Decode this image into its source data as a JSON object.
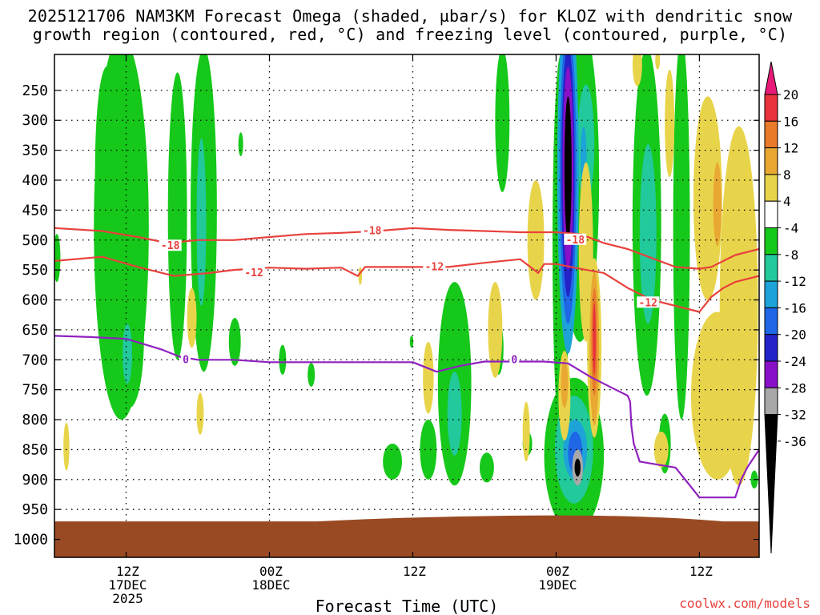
{
  "title": {
    "line1": "2025121706 NAM3KM Forecast Omega (shaded, µbar/s) for KLOZ with dendritic snow",
    "line2": "growth region (contoured, red, °C) and freezing level (contoured, purple, °C)"
  },
  "credit": "coolwx.com/models",
  "colors": {
    "green": "#16c81a",
    "teal": "#22c99b",
    "cyan": "#1da3d8",
    "blue": "#1f67e6",
    "navy": "#2323c8",
    "purple": "#8a10c8",
    "gray": "#a8a8a8",
    "black": "#000000",
    "yellow": "#e8d44a",
    "gold": "#e8a832",
    "orange": "#e87a2a",
    "red": "#e8313c",
    "magenta": "#e81a78",
    "dgz_line": "#e8413c",
    "freezing_line": "#9020c0",
    "ground": "#9a4a23"
  },
  "chart_data": {
    "type": "heatmap",
    "title": "2025121706 NAM3KM Forecast Omega (shaded, µbar/s) for KLOZ with dendritic snow growth region (contoured, red, °C) and freezing level (contoured, purple, °C)",
    "xlabel": "Forecast Time (UTC)",
    "ylabel": "",
    "x_ticks": [
      {
        "hour": 6,
        "lines": [
          "12Z",
          "17DEC",
          "2025"
        ]
      },
      {
        "hour": 18,
        "lines": [
          "00Z",
          "18DEC"
        ]
      },
      {
        "hour": 30,
        "lines": [
          "12Z"
        ]
      },
      {
        "hour": 42,
        "lines": [
          "00Z",
          "19DEC"
        ]
      },
      {
        "hour": 54,
        "lines": [
          "12Z"
        ]
      }
    ],
    "xlim": [
      0,
      59
    ],
    "y_ticks": [
      250,
      300,
      350,
      400,
      450,
      500,
      550,
      600,
      650,
      700,
      750,
      800,
      850,
      900,
      950,
      1000
    ],
    "ylim": [
      190,
      1030
    ],
    "colorbar": {
      "labels": [
        "20",
        "16",
        "12",
        "8",
        "4",
        "-4",
        "-8",
        "-12",
        "-16",
        "-20",
        "-24",
        "-28",
        "-32",
        "-36"
      ],
      "bands": [
        {
          "from": 16,
          "to": 20,
          "color": "red"
        },
        {
          "from": 12,
          "to": 16,
          "color": "orange"
        },
        {
          "from": 8,
          "to": 12,
          "color": "gold"
        },
        {
          "from": 4,
          "to": 8,
          "color": "yellow"
        },
        {
          "from": -4,
          "to": 4,
          "color": "white"
        },
        {
          "from": -8,
          "to": -4,
          "color": "green"
        },
        {
          "from": -12,
          "to": -8,
          "color": "teal"
        },
        {
          "from": -16,
          "to": -12,
          "color": "cyan"
        },
        {
          "from": -20,
          "to": -16,
          "color": "blue"
        },
        {
          "from": -24,
          "to": -20,
          "color": "navy"
        },
        {
          "from": -28,
          "to": -24,
          "color": "purple"
        },
        {
          "from": -32,
          "to": -28,
          "color": "gray"
        }
      ],
      "top_arrow": "magenta",
      "bottom_arrow": "black"
    },
    "contours": [
      {
        "name": "-18",
        "color": "dgz_line",
        "labels": [
          {
            "text": "-18",
            "h": 9.7,
            "p": 510
          },
          {
            "text": "-18",
            "h": 26.6,
            "p": 485
          },
          {
            "text": "-18",
            "h": 43.6,
            "p": 500
          }
        ],
        "points": [
          [
            0,
            480
          ],
          [
            4,
            485
          ],
          [
            7,
            495
          ],
          [
            9.5,
            505
          ],
          [
            12,
            500
          ],
          [
            15,
            500
          ],
          [
            18,
            495
          ],
          [
            21,
            490
          ],
          [
            24,
            488
          ],
          [
            27,
            485
          ],
          [
            30,
            480
          ],
          [
            33,
            483
          ],
          [
            36,
            485
          ],
          [
            39,
            487
          ],
          [
            42,
            487
          ],
          [
            44,
            490
          ],
          [
            46,
            505
          ],
          [
            48,
            515
          ],
          [
            50,
            530
          ],
          [
            52,
            545
          ],
          [
            54,
            548
          ],
          [
            55,
            545
          ],
          [
            56,
            535
          ],
          [
            57,
            525
          ],
          [
            59,
            515
          ]
        ]
      },
      {
        "name": "-12",
        "color": "dgz_line",
        "labels": [
          {
            "text": "-12",
            "h": 16.7,
            "p": 555
          },
          {
            "text": "-12",
            "h": 31.8,
            "p": 545
          },
          {
            "text": "-12",
            "h": 49.7,
            "p": 605
          }
        ],
        "points": [
          [
            0,
            535
          ],
          [
            4,
            528
          ],
          [
            7,
            545
          ],
          [
            10,
            560
          ],
          [
            13,
            555
          ],
          [
            15,
            550
          ],
          [
            18,
            546
          ],
          [
            21,
            548
          ],
          [
            24,
            546
          ],
          [
            25.4,
            560
          ],
          [
            26,
            545
          ],
          [
            30,
            545
          ],
          [
            33,
            545
          ],
          [
            36,
            538
          ],
          [
            39,
            532
          ],
          [
            40.5,
            555
          ],
          [
            41,
            540
          ],
          [
            42,
            540
          ],
          [
            44,
            548
          ],
          [
            46,
            555
          ],
          [
            48,
            580
          ],
          [
            50,
            600
          ],
          [
            52,
            610
          ],
          [
            54,
            620
          ],
          [
            55,
            595
          ],
          [
            56,
            580
          ],
          [
            57,
            570
          ],
          [
            59,
            560
          ]
        ]
      },
      {
        "name": "0",
        "color": "freezing_line",
        "labels": [
          {
            "text": "0",
            "h": 11,
            "p": 700
          },
          {
            "text": "0",
            "h": 38.5,
            "p": 700
          }
        ],
        "points": [
          [
            0,
            660
          ],
          [
            3,
            662
          ],
          [
            6,
            665
          ],
          [
            9,
            683
          ],
          [
            10.5,
            695
          ],
          [
            12,
            700
          ],
          [
            15,
            700
          ],
          [
            18,
            704
          ],
          [
            21,
            704
          ],
          [
            24,
            704
          ],
          [
            27,
            704
          ],
          [
            30,
            704
          ],
          [
            32,
            720
          ],
          [
            34,
            710
          ],
          [
            36,
            703
          ],
          [
            38,
            703
          ],
          [
            41,
            703
          ],
          [
            43,
            706
          ],
          [
            45,
            730
          ],
          [
            47,
            750
          ],
          [
            48,
            760
          ],
          [
            48.2,
            770
          ],
          [
            48.3,
            810
          ],
          [
            48.5,
            840
          ],
          [
            49,
            870
          ],
          [
            52,
            880
          ],
          [
            53,
            905
          ],
          [
            54,
            930
          ],
          [
            56,
            930
          ],
          [
            57,
            930
          ],
          [
            57.5,
            900
          ],
          [
            58,
            880
          ],
          [
            59,
            850
          ]
        ]
      }
    ],
    "omega_regions": [
      {
        "color": "green",
        "h": 5.6,
        "p": 480,
        "dh": 2.3,
        "dp": 320
      },
      {
        "color": "green",
        "h": 4.4,
        "p": 380,
        "dh": 1.0,
        "dp": 170
      },
      {
        "color": "green",
        "h": 6.3,
        "p": 660,
        "dh": 1.2,
        "dp": 120
      },
      {
        "color": "teal",
        "h": 6.1,
        "p": 690,
        "dh": 0.4,
        "dp": 50
      },
      {
        "color": "green",
        "h": 10.3,
        "p": 460,
        "dh": 0.8,
        "dp": 240
      },
      {
        "color": "green",
        "h": 12.5,
        "p": 450,
        "dh": 1.1,
        "dp": 270
      },
      {
        "color": "teal",
        "h": 12.3,
        "p": 470,
        "dh": 0.4,
        "dp": 140
      },
      {
        "color": "green",
        "h": 15.1,
        "p": 670,
        "dh": 0.5,
        "dp": 40
      },
      {
        "color": "green",
        "h": 0.2,
        "p": 530,
        "dh": 0.3,
        "dp": 40
      },
      {
        "color": "green",
        "h": 19.1,
        "p": 700,
        "dh": 0.3,
        "dp": 25
      },
      {
        "color": "green",
        "h": 15.6,
        "p": 340,
        "dh": 0.2,
        "dp": 20
      },
      {
        "color": "green",
        "h": 37.5,
        "p": 300,
        "dh": 0.6,
        "dp": 120
      },
      {
        "color": "green",
        "h": 42.4,
        "p": 510,
        "dh": 0.7,
        "dp": 320
      },
      {
        "color": "green",
        "h": 44,
        "p": 400,
        "dh": 1.6,
        "dp": 270
      },
      {
        "color": "teal",
        "h": 44.5,
        "p": 340,
        "dh": 0.7,
        "dp": 100
      },
      {
        "color": "green",
        "h": 43.5,
        "p": 860,
        "dh": 2.5,
        "dp": 130
      },
      {
        "color": "teal",
        "h": 43.5,
        "p": 850,
        "dh": 1.6,
        "dp": 90
      },
      {
        "color": "cyan",
        "h": 43.6,
        "p": 850,
        "dh": 1.0,
        "dp": 50
      },
      {
        "color": "blue",
        "h": 43.6,
        "p": 855,
        "dh": 0.6,
        "dp": 35
      },
      {
        "color": "green",
        "h": 49.6,
        "p": 470,
        "dh": 1.2,
        "dp": 290
      },
      {
        "color": "teal",
        "h": 49.7,
        "p": 490,
        "dh": 0.7,
        "dp": 150
      },
      {
        "color": "green",
        "h": 52.5,
        "p": 480,
        "dh": 0.7,
        "dp": 320
      },
      {
        "color": "green",
        "h": 33.5,
        "p": 740,
        "dh": 1.4,
        "dp": 170
      },
      {
        "color": "teal",
        "h": 33.5,
        "p": 790,
        "dh": 0.6,
        "dp": 70
      },
      {
        "color": "green",
        "h": 31.3,
        "p": 850,
        "dh": 0.7,
        "dp": 50
      },
      {
        "color": "green",
        "h": 28.3,
        "p": 870,
        "dh": 0.8,
        "dp": 30
      },
      {
        "color": "green",
        "h": 36.2,
        "p": 880,
        "dh": 0.6,
        "dp": 25
      },
      {
        "color": "green",
        "h": 37.2,
        "p": 680,
        "dh": 0.4,
        "dp": 45
      },
      {
        "color": "green",
        "h": 21.5,
        "p": 725,
        "dh": 0.3,
        "dp": 20
      },
      {
        "color": "green",
        "h": 29.9,
        "p": 670,
        "dh": 0.15,
        "dp": 10
      },
      {
        "color": "green",
        "h": 39.6,
        "p": 840,
        "dh": 0.4,
        "dp": 20
      },
      {
        "color": "green",
        "h": 51.1,
        "p": 840,
        "dh": 0.5,
        "dp": 50
      },
      {
        "color": "green",
        "h": 58.6,
        "p": 900,
        "dh": 0.3,
        "dp": 15
      },
      {
        "color": "teal",
        "h": 42.7,
        "p": 750,
        "dh": 0.4,
        "dp": 60
      },
      {
        "color": "cyan",
        "h": 43.0,
        "p": 390,
        "dh": 0.9,
        "dp": 300
      },
      {
        "color": "blue",
        "h": 43.0,
        "p": 390,
        "dh": 0.7,
        "dp": 250
      },
      {
        "color": "navy",
        "h": 43.0,
        "p": 385,
        "dh": 0.55,
        "dp": 210
      },
      {
        "color": "purple",
        "h": 43.0,
        "p": 380,
        "dh": 0.45,
        "dp": 170
      },
      {
        "color": "black",
        "h": 43.0,
        "p": 380,
        "dh": 0.3,
        "dp": 120
      },
      {
        "color": "cyan",
        "h": 44.3,
        "p": 360,
        "dh": 0.25,
        "dp": 50
      },
      {
        "color": "gray",
        "h": 43.8,
        "p": 880,
        "dh": 0.45,
        "dp": 30
      },
      {
        "color": "black",
        "h": 43.8,
        "p": 880,
        "dh": 0.25,
        "dp": 15
      }
    ],
    "positive_regions": [
      {
        "color": "yellow",
        "h": 54.7,
        "p": 430,
        "dh": 1.2,
        "dp": 170
      },
      {
        "color": "yellow",
        "h": 57.3,
        "p": 610,
        "dh": 1.6,
        "dp": 300
      },
      {
        "color": "yellow",
        "h": 55.5,
        "p": 760,
        "dh": 2.2,
        "dp": 140
      },
      {
        "color": "gold",
        "h": 55.5,
        "p": 440,
        "dh": 0.35,
        "dp": 70
      },
      {
        "color": "yellow",
        "h": 50.8,
        "p": 850,
        "dh": 0.6,
        "dp": 30
      },
      {
        "color": "yellow",
        "h": 51.5,
        "p": 305,
        "dh": 0.4,
        "dp": 90
      },
      {
        "color": "yellow",
        "h": 48.8,
        "p": 208,
        "dh": 0.4,
        "dp": 35
      },
      {
        "color": "yellow",
        "h": 50.5,
        "p": 200,
        "dh": 0.2,
        "dp": 15
      },
      {
        "color": "yellow",
        "h": 40.3,
        "p": 500,
        "dh": 0.7,
        "dp": 100
      },
      {
        "color": "yellow",
        "h": 36.9,
        "p": 650,
        "dh": 0.6,
        "dp": 80
      },
      {
        "color": "yellow",
        "h": 39.5,
        "p": 820,
        "dh": 0.3,
        "dp": 50
      },
      {
        "color": "yellow",
        "h": 37.2,
        "p": 660,
        "dh": 0.25,
        "dp": 40
      },
      {
        "color": "yellow",
        "h": 44.5,
        "p": 520,
        "dh": 0.6,
        "dp": 150
      },
      {
        "color": "yellow",
        "h": 42.7,
        "p": 760,
        "dh": 0.5,
        "dp": 75
      },
      {
        "color": "gold",
        "h": 42.7,
        "p": 740,
        "dh": 0.3,
        "dp": 40
      },
      {
        "color": "yellow",
        "h": 45.2,
        "p": 680,
        "dh": 0.6,
        "dp": 150
      },
      {
        "color": "gold",
        "h": 45.2,
        "p": 680,
        "dh": 0.4,
        "dp": 130
      },
      {
        "color": "orange",
        "h": 45.2,
        "p": 670,
        "dh": 0.25,
        "dp": 90
      },
      {
        "color": "red",
        "h": 45.2,
        "p": 665,
        "dh": 0.12,
        "dp": 60
      },
      {
        "color": "yellow",
        "h": 31.3,
        "p": 730,
        "dh": 0.45,
        "dp": 60
      },
      {
        "color": "yellow",
        "h": 25.6,
        "p": 560,
        "dh": 0.15,
        "dp": 15
      },
      {
        "color": "yellow",
        "h": 11.5,
        "p": 630,
        "dh": 0.4,
        "dp": 50
      },
      {
        "color": "yellow",
        "h": 12.2,
        "p": 790,
        "dh": 0.3,
        "dp": 35
      },
      {
        "color": "yellow",
        "h": 1.0,
        "p": 845,
        "dh": 0.25,
        "dp": 40
      }
    ],
    "ground": {
      "color": "ground",
      "p_top_start": 970,
      "p_top_mid": 960,
      "p_bottom": 1030
    }
  }
}
